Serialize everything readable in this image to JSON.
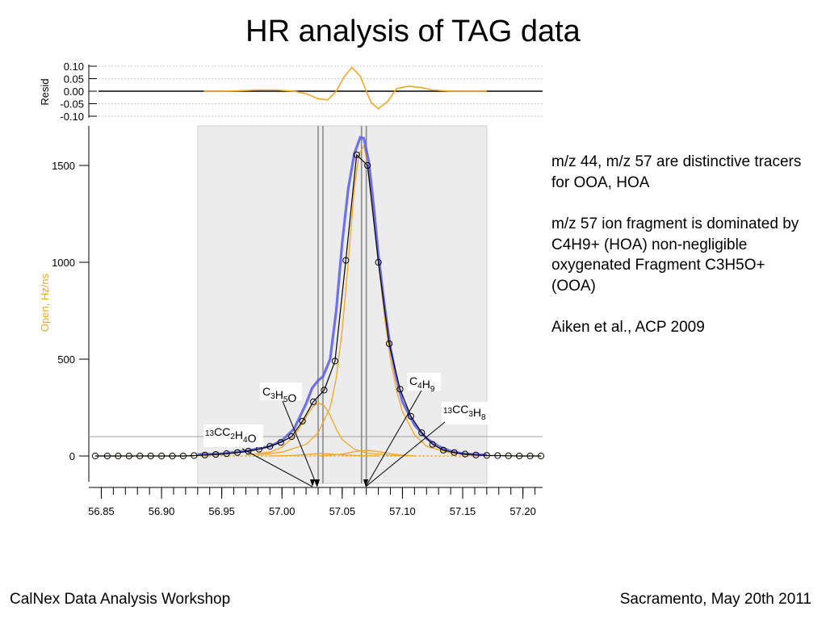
{
  "slide": {
    "title": "HR analysis of TAG data",
    "footer_left": "CalNex Data Analysis Workshop",
    "footer_right": "Sacramento, May 20th 2011"
  },
  "notes": [
    "m/z 44, m/z 57 are  distinctive tracers for OOA, HOA",
    "m/z 57 ion fragment is dominated by C4H9+ (HOA) non-negligible oxygenated Fragment  C3H5O+ (OOA)",
    "Aiken et al., ACP 2009"
  ],
  "colors": {
    "fit_total": "#5a5ae6",
    "peaks": "#f5a623",
    "measured": "#000000",
    "axis_label": "#f5a623",
    "fit_region": "#ececec"
  },
  "chart_data": [
    {
      "type": "line",
      "panel": "residual",
      "ylabel": "Resid",
      "ylim": [
        -0.1,
        0.1
      ],
      "yticks": [
        "0.10",
        "0.05",
        "0.00",
        "-0.05",
        "-0.10"
      ],
      "series": [
        {
          "x": [
            56.935,
            56.95,
            56.965,
            56.98,
            56.995,
            57.01,
            57.02,
            57.03,
            57.038,
            57.045,
            57.052,
            57.058,
            57.065,
            57.07,
            57.074,
            57.08,
            57.088,
            57.095,
            57.105,
            57.115,
            57.125,
            57.14,
            57.155,
            57.17
          ],
          "y": [
            0.0,
            0.0,
            0.002,
            0.005,
            0.005,
            0.0,
            -0.01,
            -0.03,
            -0.035,
            0.0,
            0.06,
            0.095,
            0.06,
            0.0,
            -0.045,
            -0.07,
            -0.04,
            0.01,
            0.02,
            0.015,
            0.005,
            0.0,
            0.0,
            0.0
          ]
        }
      ]
    },
    {
      "type": "line",
      "panel": "main",
      "ylabel": "Open, Hz/ns",
      "xlim": [
        56.845,
        57.215
      ],
      "ylim": [
        -150,
        1650
      ],
      "xticks": [
        "56.85",
        "56.90",
        "56.95",
        "57.00",
        "57.05",
        "57.10",
        "57.15",
        "57.20"
      ],
      "yticks": [
        "0",
        "500",
        "1000",
        "1500"
      ],
      "fit_region": [
        56.93,
        57.17
      ],
      "peak_markers": [
        57.03,
        57.034,
        57.066,
        57.07
      ],
      "annotations": [
        {
          "label": "C3H5O",
          "x": 57.031
        },
        {
          "label": "C4H9",
          "x": 57.069
        },
        {
          "label": "13CC3H8",
          "x": 57.07
        },
        {
          "label": "13CC2H4O",
          "x": 57.033
        }
      ],
      "series": [
        {
          "kind": "measured",
          "x": [
            56.845,
            56.855,
            56.864,
            56.873,
            56.882,
            56.891,
            56.9,
            56.909,
            56.918,
            56.927,
            56.936,
            56.945,
            56.954,
            56.963,
            56.972,
            56.981,
            56.99,
            56.999,
            57.008,
            57.017,
            57.026,
            57.035,
            57.044,
            57.053,
            57.062,
            57.071,
            57.08,
            57.089,
            57.098,
            57.107,
            57.116,
            57.125,
            57.134,
            57.143,
            57.152,
            57.161,
            57.17,
            57.179,
            57.188,
            57.197,
            57.206,
            57.215
          ],
          "y": [
            0,
            0,
            0,
            0,
            0,
            0,
            0,
            0,
            0,
            2,
            5,
            8,
            12,
            18,
            25,
            35,
            50,
            70,
            100,
            180,
            280,
            340,
            490,
            1010,
            1555,
            1500,
            1000,
            580,
            345,
            205,
            120,
            60,
            30,
            18,
            10,
            5,
            3,
            2,
            1,
            0,
            0,
            0
          ]
        },
        {
          "kind": "fit",
          "x": [
            56.93,
            56.95,
            56.97,
            56.99,
            57.0,
            57.01,
            57.02,
            57.025,
            57.03,
            57.034,
            57.04,
            57.045,
            57.05,
            57.055,
            57.06,
            57.065,
            57.068,
            57.072,
            57.076,
            57.08,
            57.085,
            57.09,
            57.095,
            57.1,
            57.11,
            57.12,
            57.13,
            57.14,
            57.15,
            57.17
          ],
          "y": [
            8,
            12,
            25,
            50,
            80,
            140,
            270,
            350,
            390,
            410,
            500,
            750,
            1100,
            1380,
            1560,
            1645,
            1640,
            1520,
            1300,
            1040,
            780,
            560,
            400,
            280,
            160,
            90,
            50,
            25,
            12,
            5
          ]
        },
        {
          "kind": "peak C4H9",
          "x": [
            56.98,
            57.0,
            57.02,
            57.03,
            57.04,
            57.045,
            57.05,
            57.055,
            57.06,
            57.064,
            57.068,
            57.072,
            57.076,
            57.08,
            57.085,
            57.09,
            57.095,
            57.1,
            57.11,
            57.12,
            57.14,
            57.16
          ],
          "y": [
            5,
            20,
            60,
            120,
            250,
            400,
            650,
            1000,
            1380,
            1560,
            1600,
            1480,
            1260,
            1000,
            720,
            500,
            340,
            230,
            110,
            50,
            15,
            3
          ]
        },
        {
          "kind": "peak C3H5O",
          "x": [
            56.97,
            56.99,
            57.0,
            57.01,
            57.02,
            57.025,
            57.03,
            57.035,
            57.04,
            57.045,
            57.05,
            57.06,
            57.07,
            57.09,
            57.11
          ],
          "y": [
            5,
            20,
            45,
            100,
            200,
            250,
            275,
            260,
            210,
            140,
            85,
            35,
            15,
            4,
            0
          ]
        },
        {
          "kind": "peak 13CC2H4O",
          "x": [
            56.99,
            57.01,
            57.02,
            57.033,
            57.045,
            57.06,
            57.08
          ],
          "y": [
            0,
            3,
            8,
            14,
            8,
            3,
            0
          ]
        },
        {
          "kind": "peak 13CC3H8",
          "x": [
            57.03,
            57.05,
            57.06,
            57.07,
            57.08,
            57.095,
            57.11
          ],
          "y": [
            0,
            10,
            22,
            30,
            22,
            8,
            0
          ]
        }
      ]
    }
  ]
}
